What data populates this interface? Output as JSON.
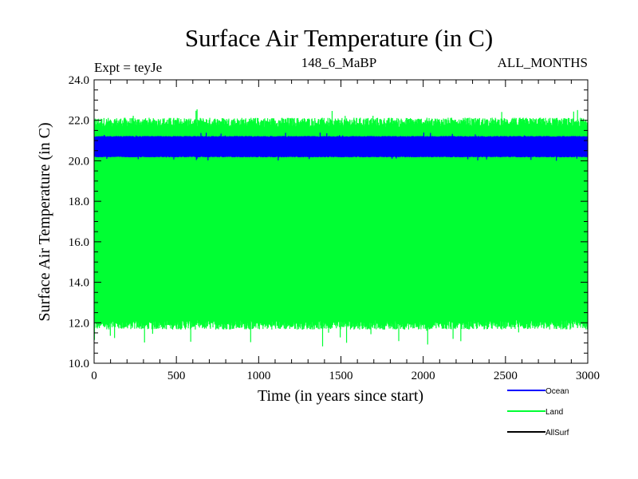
{
  "chart_data": {
    "type": "line",
    "title": "Surface Air Temperature (in C)",
    "subtitle_left": "Expt = teyJe",
    "subtitle_center": "148_6_MaBP",
    "subtitle_right": "ALL_MONTHS",
    "xlabel": "Time (in years since start)",
    "ylabel": "Surface Air Temperature (in C)",
    "xlim": [
      0,
      3000
    ],
    "ylim": [
      10.0,
      24.0
    ],
    "x_ticks": [
      0,
      500,
      1000,
      1500,
      2000,
      2500,
      3000
    ],
    "x_tick_labels": [
      "0",
      "500",
      "1000",
      "1500",
      "2000",
      "2500",
      "3000"
    ],
    "y_ticks": [
      10.0,
      12.0,
      14.0,
      16.0,
      18.0,
      20.0,
      22.0,
      24.0
    ],
    "y_tick_labels": [
      "10.0",
      "12.0",
      "14.0",
      "16.0",
      "18.0",
      "20.0",
      "22.0",
      "24.0"
    ],
    "legend_position": "bottom-right",
    "series": [
      {
        "name": "Land",
        "color": "#00ff33",
        "pattern": "monthly seasonal oscillation",
        "upper_envelope": {
          "x": [
            0,
            500,
            1000,
            1500,
            2000,
            2500,
            3000
          ],
          "y": [
            21.9,
            21.9,
            21.9,
            21.9,
            21.9,
            21.9,
            21.9
          ]
        },
        "lower_envelope": {
          "x": [
            0,
            500,
            1000,
            1500,
            2000,
            2500,
            3000
          ],
          "y": [
            11.9,
            11.9,
            11.9,
            11.9,
            11.9,
            11.9,
            11.9
          ]
        },
        "max": 22.6,
        "min": 10.8
      },
      {
        "name": "Ocean",
        "color": "#0000ff",
        "pattern": "monthly seasonal oscillation",
        "upper_envelope": {
          "x": [
            0,
            500,
            1000,
            1500,
            2000,
            2500,
            3000
          ],
          "y": [
            21.2,
            21.2,
            21.2,
            21.2,
            21.2,
            21.2,
            21.2
          ]
        },
        "lower_envelope": {
          "x": [
            0,
            500,
            1000,
            1500,
            2000,
            2500,
            3000
          ],
          "y": [
            20.2,
            20.2,
            20.2,
            20.2,
            20.2,
            20.2,
            20.2
          ]
        },
        "max": 21.4,
        "min": 20.0
      },
      {
        "name": "AllSurf",
        "color": "#000000",
        "pattern": "not visible in plot area"
      }
    ]
  }
}
